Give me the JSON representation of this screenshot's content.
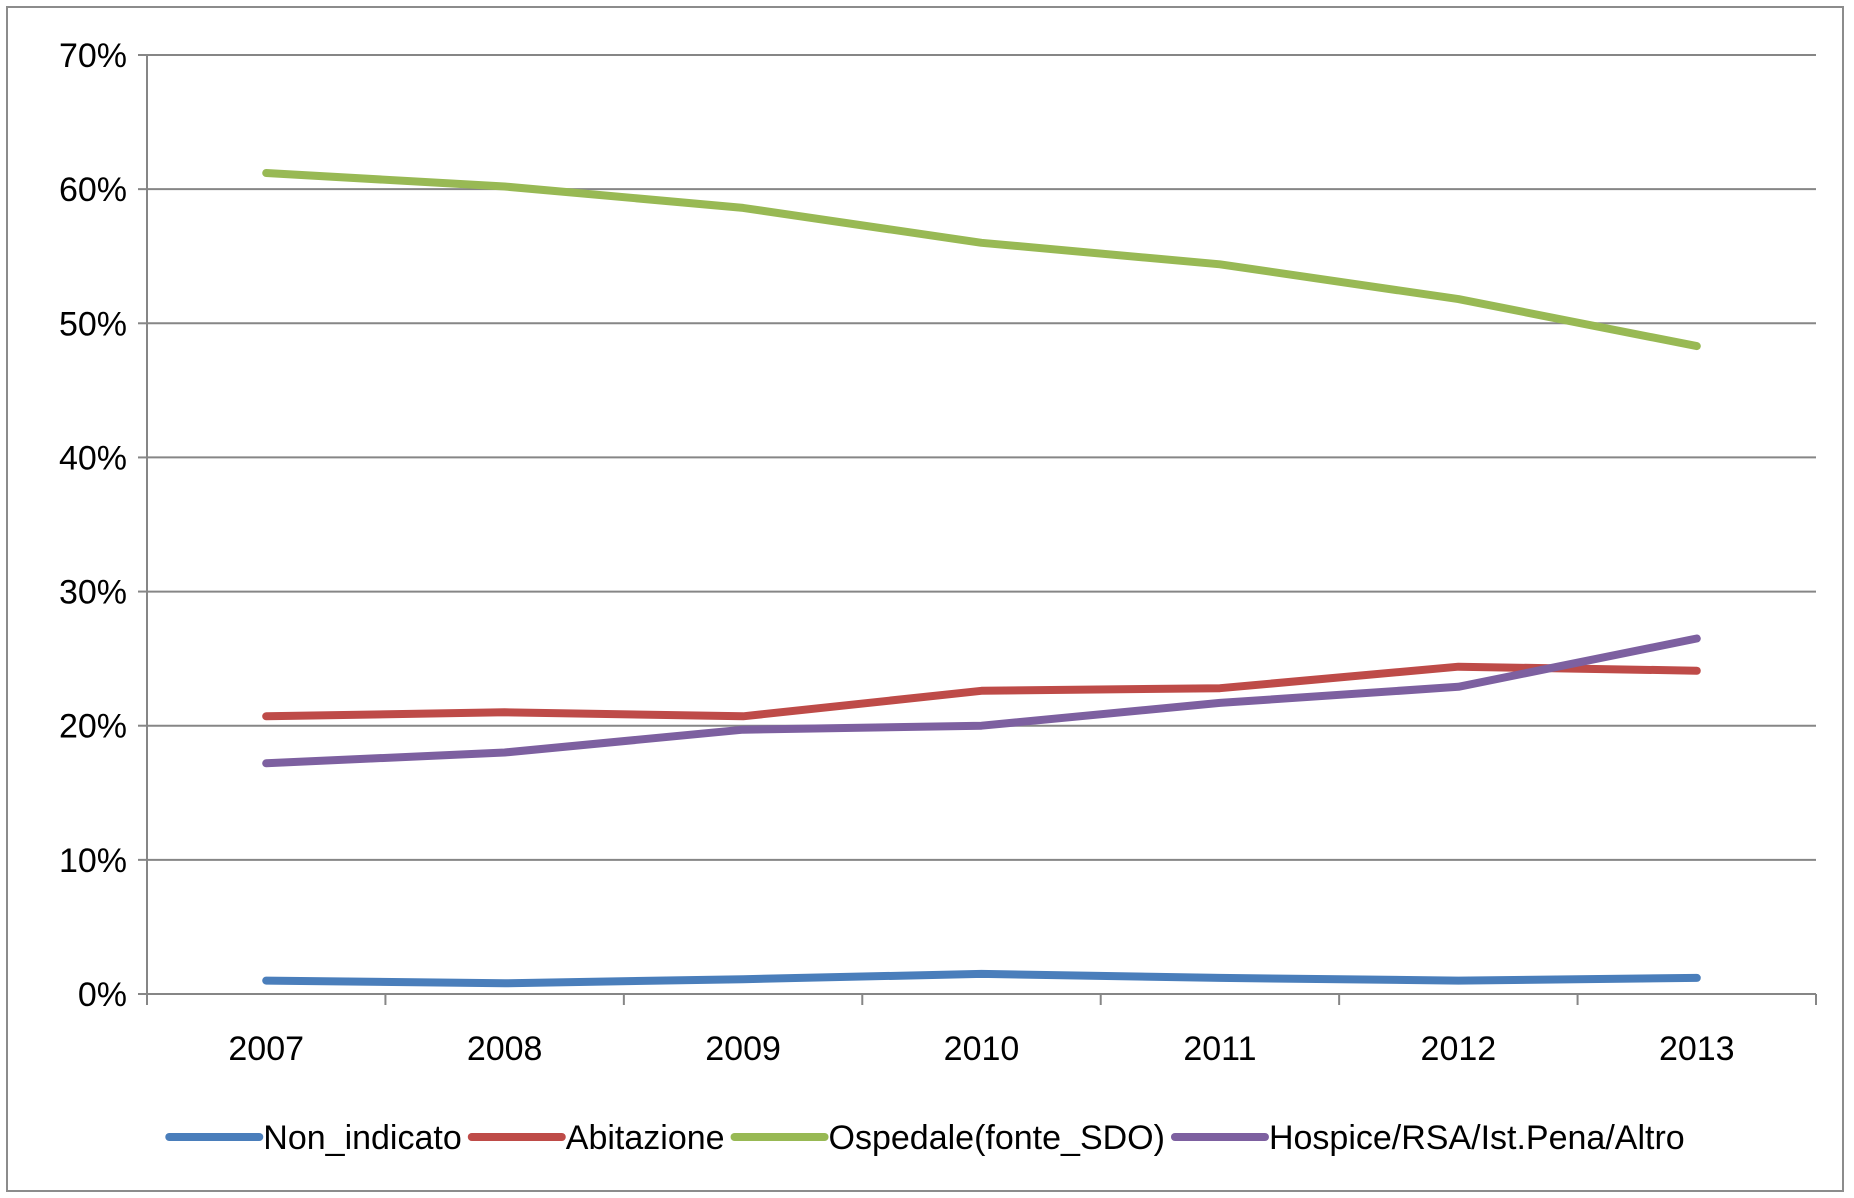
{
  "chart_data": {
    "type": "line",
    "categories": [
      "2007",
      "2008",
      "2009",
      "2010",
      "2011",
      "2012",
      "2013"
    ],
    "ylim": [
      0,
      70
    ],
    "yticks": [
      0,
      10,
      20,
      30,
      40,
      50,
      60,
      70
    ],
    "ytick_labels": [
      "0%",
      "10%",
      "20%",
      "30%",
      "40%",
      "50%",
      "60%",
      "70%"
    ],
    "grid": true,
    "legend_position": "bottom",
    "series": [
      {
        "name": "Non_indicato",
        "color": "#4a7ebb",
        "values": [
          1.0,
          0.8,
          1.1,
          1.5,
          1.2,
          1.0,
          1.2
        ]
      },
      {
        "name": "Abitazione",
        "color": "#be4b48",
        "values": [
          20.7,
          21.0,
          20.7,
          22.6,
          22.8,
          24.4,
          24.1
        ]
      },
      {
        "name": "Ospedale(fonte_SDO)",
        "color": "#98b954",
        "values": [
          61.2,
          60.2,
          58.6,
          56.0,
          54.4,
          51.8,
          48.3
        ]
      },
      {
        "name": "Hospice/RSA/Ist.Pena/Altro",
        "color": "#7d60a0",
        "values": [
          17.2,
          18.0,
          19.7,
          20.0,
          21.7,
          22.9,
          26.5
        ]
      }
    ]
  }
}
